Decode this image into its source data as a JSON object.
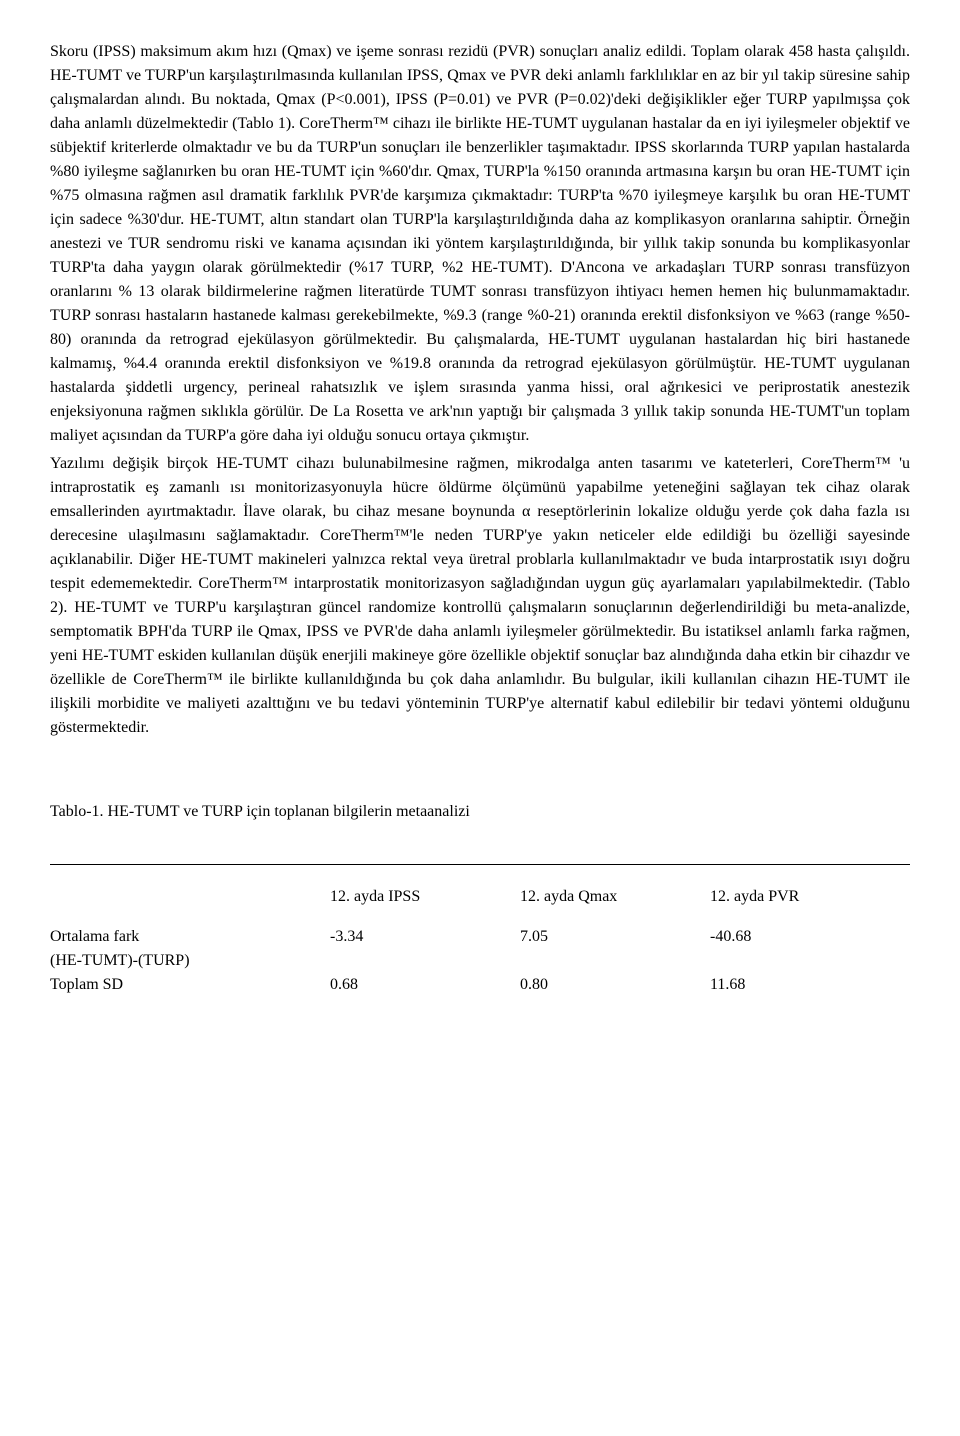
{
  "paragraph1": "Skoru (IPSS) maksimum akım hızı (Qmax) ve işeme sonrası rezidü (PVR) sonuçları analiz edildi. Toplam olarak 458 hasta çalışıldı. HE-TUMT ve TURP'un karşılaştırılmasında kullanılan IPSS, Qmax ve PVR deki anlamlı farklılıklar en az bir yıl takip süresine sahip çalışmalardan alındı. Bu noktada, Qmax (P<0.001), IPSS (P=0.01) ve PVR (P=0.02)'deki değişiklikler eğer TURP yapılmışsa çok daha anlamlı düzelmektedir (Tablo 1). CoreTherm™ cihazı ile birlikte HE-TUMT uygulanan hastalar da en iyi iyileşmeler objektif ve sübjektif kriterlerde olmaktadır ve bu da TURP'un sonuçları ile benzerlikler taşımaktadır. IPSS skorlarında TURP yapılan hastalarda %80 iyileşme sağlanırken bu oran HE-TUMT için %60'dır. Qmax, TURP'la %150 oranında artmasına karşın bu oran HE-TUMT için %75 olmasına rağmen asıl dramatik farklılık PVR'de karşımıza çıkmaktadır: TURP'ta %70 iyileşmeye karşılık bu oran HE-TUMT için sadece %30'dur. HE-TUMT, altın standart olan TURP'la karşılaştırıldığında daha az komplikasyon oranlarına sahiptir. Örneğin anestezi ve TUR sendromu riski ve kanama açısından iki yöntem karşılaştırıldığında, bir yıllık takip sonunda bu komplikasyonlar TURP'ta daha yaygın olarak görülmektedir (%17 TURP, %2 HE-TUMT). D'Ancona ve arkadaşları TURP sonrası transfüzyon oranlarını % 13 olarak bildirmelerine rağmen literatürde TUMT sonrası transfüzyon ihtiyacı hemen hemen hiç bulunmamaktadır. TURP sonrası hastaların hastanede kalması gerekebilmekte, %9.3 (range %0-21) oranında erektil disfonksiyon ve %63 (range %50-80) oranında da retrograd ejekülasyon görülmektedir. Bu çalışmalarda, HE-TUMT uygulanan hastalardan hiç biri hastanede kalmamış, %4.4 oranında erektil disfonksiyon ve %19.8 oranında da retrograd ejekülasyon görülmüştür. HE-TUMT uygulanan hastalarda şiddetli urgency, perineal rahatsızlık ve işlem sırasında yanma hissi, oral ağrıkesici ve periprostatik anestezik enjeksiyonuna rağmen sıklıkla görülür. De La Rosetta ve ark'nın yaptığı bir çalışmada 3 yıllık takip sonunda HE-TUMT'un toplam maliyet açısından da TURP'a göre daha iyi olduğu sonucu ortaya çıkmıştır.",
  "paragraph2": "Yazılımı değişik birçok HE-TUMT cihazı bulunabilmesine rağmen, mikrodalga anten tasarımı ve kateterleri, CoreTherm™ 'u intraprostatik eş zamanlı ısı monitorizasyonuyla hücre öldürme ölçümünü yapabilme yeteneğini sağlayan tek cihaz olarak emsallerinden ayırtmaktadır. İlave olarak, bu cihaz mesane boynunda α reseptörlerinin lokalize olduğu yerde çok daha fazla ısı derecesine ulaşılmasını sağlamaktadır. CoreTherm™'le neden TURP'ye yakın neticeler elde edildiği bu özelliği sayesinde açıklanabilir. Diğer HE-TUMT makineleri yalnızca rektal veya üretral problarla kullanılmaktadır ve buda intarprostatik ısıyı doğru tespit edememektedir. CoreTherm™ intarprostatik monitorizasyon sağladığından uygun güç ayarlamaları yapılabilmektedir. (Tablo 2). HE-TUMT ve TURP'u karşılaştıran güncel randomize kontrollü çalışmaların sonuçlarının değerlendirildiği bu meta-analizde, semptomatik BPH'da TURP ile Qmax, IPSS ve PVR'de daha anlamlı iyileşmeler görülmektedir. Bu istatiksel anlamlı farka rağmen, yeni HE-TUMT eskiden kullanılan düşük enerjili makineye göre özellikle objektif sonuçlar baz alındığında daha etkin bir cihazdır ve özellikle de CoreTherm™ ile birlikte kullanıldığında bu çok daha anlamlıdır. Bu bulgular, ikili kullanılan cihazın HE-TUMT ile ilişkili morbidite ve maliyeti azalttığını ve bu tedavi yönteminin TURP'ye alternatif kabul edilebilir bir tedavi yöntemi olduğunu göstermektedir.",
  "table": {
    "caption": "Tablo-1. HE-TUMT ve TURP için toplanan bilgilerin metaanalizi",
    "headers": {
      "col1": "",
      "col2": "12. ayda IPSS",
      "col3": "12. ayda Qmax",
      "col4": "12. ayda PVR"
    },
    "rows": [
      {
        "label1": "Ortalama fark",
        "label2": "(HE-TUMT)-(TURP)",
        "col2": "-3.34",
        "col3": "7.05",
        "col4": "-40.68"
      },
      {
        "label1": "Toplam SD",
        "label2": "",
        "col2": "0.68",
        "col3": "0.80",
        "col4": "11.68"
      }
    ]
  }
}
